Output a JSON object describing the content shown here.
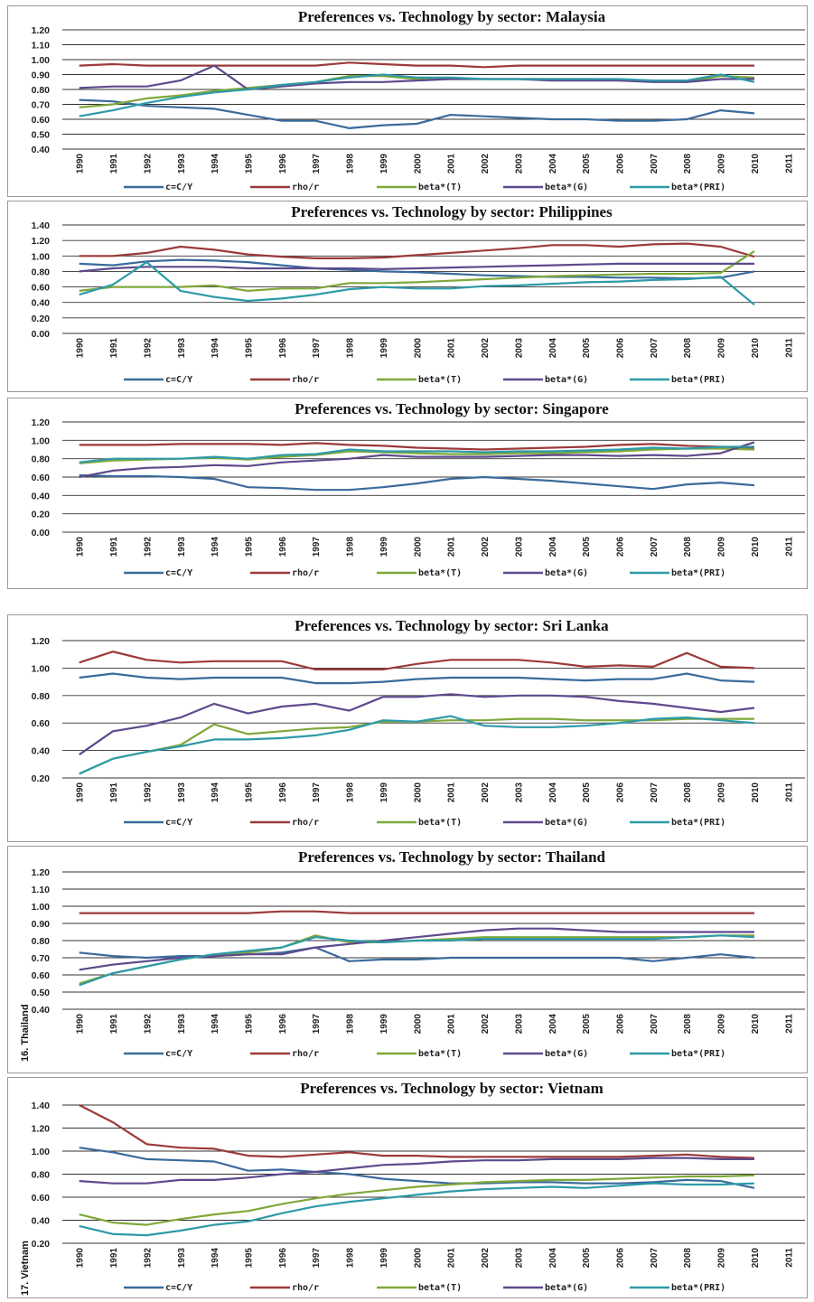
{
  "chart_data": [
    {
      "type": "line",
      "title": "Preferences vs. Technology by sector: Malaysia",
      "side_label": "",
      "x": [
        "1990",
        "1991",
        "1992",
        "1993",
        "1994",
        "1995",
        "1996",
        "1997",
        "1998",
        "1999",
        "2000",
        "2001",
        "2002",
        "2003",
        "2004",
        "2005",
        "2006",
        "2007",
        "2008",
        "2009",
        "2010",
        "2011"
      ],
      "yticks": [
        "1.20",
        "1.10",
        "1.00",
        "0.90",
        "0.80",
        "0.70",
        "0.60",
        "0.50",
        "0.40"
      ],
      "ylim": [
        0.4,
        1.2
      ],
      "legend_position": "bottom",
      "series": [
        {
          "name": "c=C/Y",
          "color": "#3a6b9c",
          "values": [
            0.73,
            0.72,
            0.69,
            0.68,
            0.67,
            0.63,
            0.59,
            0.59,
            0.54,
            0.56,
            0.57,
            0.63,
            0.62,
            0.61,
            0.6,
            0.6,
            0.59,
            0.59,
            0.6,
            0.66,
            0.64,
            null
          ]
        },
        {
          "name": "rho/r",
          "color": "#9c3a3a",
          "values": [
            0.96,
            0.97,
            0.96,
            0.96,
            0.96,
            0.96,
            0.96,
            0.96,
            0.98,
            0.97,
            0.96,
            0.96,
            0.95,
            0.96,
            0.96,
            0.96,
            0.96,
            0.96,
            0.96,
            0.96,
            0.96,
            null
          ]
        },
        {
          "name": "beta*(T)",
          "color": "#7fa83a",
          "values": [
            0.68,
            0.7,
            0.74,
            0.76,
            0.79,
            0.81,
            0.83,
            0.85,
            0.89,
            0.89,
            0.87,
            0.87,
            0.87,
            0.87,
            0.87,
            0.87,
            0.86,
            0.86,
            0.85,
            0.89,
            0.88,
            null
          ]
        },
        {
          "name": "beta*(G)",
          "color": "#5e4a8c",
          "values": [
            0.81,
            0.82,
            0.82,
            0.86,
            0.96,
            0.8,
            0.82,
            0.84,
            0.85,
            0.85,
            0.86,
            0.87,
            0.87,
            0.87,
            0.86,
            0.86,
            0.86,
            0.85,
            0.85,
            0.87,
            0.87,
            null
          ]
        },
        {
          "name": "beta*(PRI)",
          "color": "#2e9aa8",
          "values": [
            0.62,
            0.66,
            0.71,
            0.75,
            0.78,
            0.8,
            0.83,
            0.85,
            0.88,
            0.9,
            0.88,
            0.88,
            0.87,
            0.87,
            0.87,
            0.87,
            0.87,
            0.86,
            0.86,
            0.9,
            0.85,
            null
          ]
        }
      ]
    },
    {
      "type": "line",
      "title": "Preferences vs. Technology by sector: Philippines",
      "side_label": "",
      "x": [
        "1990",
        "1991",
        "1992",
        "1993",
        "1994",
        "1995",
        "1996",
        "1997",
        "1998",
        "1999",
        "2000",
        "2001",
        "2002",
        "2003",
        "2004",
        "2005",
        "2006",
        "2007",
        "2008",
        "2009",
        "2010",
        "2011"
      ],
      "yticks": [
        "1.40",
        "1.20",
        "1.00",
        "0.80",
        "0.60",
        "0.40",
        "0.20",
        "0.00"
      ],
      "ylim": [
        0.0,
        1.4
      ],
      "legend_position": "bottom",
      "series": [
        {
          "name": "c=C/Y",
          "color": "#3a6b9c",
          "values": [
            0.9,
            0.88,
            0.93,
            0.95,
            0.94,
            0.92,
            0.88,
            0.84,
            0.82,
            0.8,
            0.79,
            0.77,
            0.75,
            0.74,
            0.73,
            0.73,
            0.72,
            0.72,
            0.71,
            0.72,
            0.8,
            null
          ]
        },
        {
          "name": "rho/r",
          "color": "#9c3a3a",
          "values": [
            1.0,
            1.0,
            1.04,
            1.12,
            1.08,
            1.02,
            0.99,
            0.97,
            0.97,
            0.98,
            1.01,
            1.04,
            1.07,
            1.1,
            1.14,
            1.14,
            1.12,
            1.15,
            1.16,
            1.12,
            0.99,
            null
          ]
        },
        {
          "name": "beta*(T)",
          "color": "#7fa83a",
          "values": [
            0.55,
            0.6,
            0.6,
            0.6,
            0.62,
            0.55,
            0.58,
            0.58,
            0.65,
            0.65,
            0.66,
            0.68,
            0.7,
            0.72,
            0.74,
            0.75,
            0.76,
            0.77,
            0.77,
            0.78,
            1.06,
            null
          ]
        },
        {
          "name": "beta*(G)",
          "color": "#5e4a8c",
          "values": [
            0.8,
            0.84,
            0.86,
            0.86,
            0.86,
            0.84,
            0.84,
            0.84,
            0.84,
            0.83,
            0.84,
            0.85,
            0.86,
            0.87,
            0.88,
            0.89,
            0.9,
            0.9,
            0.9,
            0.9,
            0.9,
            null
          ]
        },
        {
          "name": "beta*(PRI)",
          "color": "#2e9aa8",
          "values": [
            0.5,
            0.63,
            0.92,
            0.55,
            0.47,
            0.42,
            0.45,
            0.5,
            0.57,
            0.6,
            0.58,
            0.58,
            0.61,
            0.62,
            0.64,
            0.66,
            0.67,
            0.69,
            0.7,
            0.73,
            0.37,
            null
          ]
        }
      ]
    },
    {
      "type": "line",
      "title": "Preferences vs. Technology by sector: Singapore",
      "side_label": "",
      "x": [
        "1990",
        "1991",
        "1992",
        "1993",
        "1994",
        "1995",
        "1996",
        "1997",
        "1998",
        "1999",
        "2000",
        "2001",
        "2002",
        "2003",
        "2004",
        "2005",
        "2006",
        "2007",
        "2008",
        "2009",
        "2010",
        "2011"
      ],
      "yticks": [
        "1.20",
        "1.00",
        "0.80",
        "0.60",
        "0.40",
        "0.20",
        "0.00"
      ],
      "ylim": [
        0.0,
        1.2
      ],
      "legend_position": "bottom",
      "series": [
        {
          "name": "c=C/Y",
          "color": "#3a6b9c",
          "values": [
            0.62,
            0.61,
            0.61,
            0.6,
            0.58,
            0.49,
            0.48,
            0.46,
            0.46,
            0.49,
            0.53,
            0.58,
            0.6,
            0.58,
            0.56,
            0.53,
            0.5,
            0.47,
            0.52,
            0.54,
            0.51,
            null
          ]
        },
        {
          "name": "rho/r",
          "color": "#9c3a3a",
          "values": [
            0.95,
            0.95,
            0.95,
            0.96,
            0.96,
            0.96,
            0.95,
            0.97,
            0.95,
            0.94,
            0.92,
            0.91,
            0.9,
            0.91,
            0.92,
            0.93,
            0.95,
            0.96,
            0.94,
            0.93,
            0.92,
            null
          ]
        },
        {
          "name": "beta*(T)",
          "color": "#7fa83a",
          "values": [
            0.75,
            0.78,
            0.79,
            0.8,
            0.81,
            0.79,
            0.82,
            0.84,
            0.88,
            0.87,
            0.86,
            0.85,
            0.85,
            0.86,
            0.86,
            0.87,
            0.88,
            0.9,
            0.91,
            0.91,
            0.9,
            null
          ]
        },
        {
          "name": "beta*(G)",
          "color": "#5e4a8c",
          "values": [
            0.6,
            0.67,
            0.7,
            0.71,
            0.73,
            0.72,
            0.76,
            0.78,
            0.8,
            0.84,
            0.82,
            0.82,
            0.82,
            0.83,
            0.84,
            0.84,
            0.83,
            0.84,
            0.83,
            0.86,
            0.98,
            null
          ]
        },
        {
          "name": "beta*(PRI)",
          "color": "#2e9aa8",
          "values": [
            0.76,
            0.8,
            0.8,
            0.8,
            0.82,
            0.8,
            0.84,
            0.85,
            0.9,
            0.88,
            0.88,
            0.88,
            0.87,
            0.88,
            0.88,
            0.89,
            0.9,
            0.92,
            0.91,
            0.93,
            0.93,
            null
          ]
        }
      ]
    },
    {
      "type": "line",
      "title": "Preferences vs. Technology by sector: Sri Lanka",
      "side_label": "",
      "x": [
        "1990",
        "1991",
        "1992",
        "1993",
        "1994",
        "1995",
        "1996",
        "1997",
        "1998",
        "1999",
        "2000",
        "2001",
        "2002",
        "2003",
        "2004",
        "2005",
        "2006",
        "2007",
        "2008",
        "2009",
        "2010",
        "2011"
      ],
      "yticks": [
        "1.20",
        "1.00",
        "0.80",
        "0.60",
        "0.40",
        "0.20"
      ],
      "ylim": [
        0.2,
        1.2
      ],
      "legend_position": "bottom",
      "series": [
        {
          "name": "c=C/Y",
          "color": "#3a6b9c",
          "values": [
            0.93,
            0.96,
            0.93,
            0.92,
            0.93,
            0.93,
            0.93,
            0.89,
            0.89,
            0.9,
            0.92,
            0.93,
            0.93,
            0.93,
            0.92,
            0.91,
            0.92,
            0.92,
            0.96,
            0.91,
            0.9,
            null
          ]
        },
        {
          "name": "rho/r",
          "color": "#9c3a3a",
          "values": [
            1.04,
            1.12,
            1.06,
            1.04,
            1.05,
            1.05,
            1.05,
            0.99,
            0.99,
            0.99,
            1.03,
            1.06,
            1.06,
            1.06,
            1.04,
            1.01,
            1.02,
            1.01,
            1.11,
            1.01,
            1.0,
            null
          ]
        },
        {
          "name": "beta*(T)",
          "color": "#7fa83a",
          "values": [
            0.23,
            0.34,
            0.39,
            0.44,
            0.59,
            0.52,
            0.54,
            0.56,
            0.57,
            0.61,
            0.61,
            0.62,
            0.62,
            0.63,
            0.63,
            0.62,
            0.62,
            0.62,
            0.63,
            0.63,
            0.63,
            null
          ]
        },
        {
          "name": "beta*(G)",
          "color": "#5e4a8c",
          "values": [
            0.37,
            0.54,
            0.58,
            0.64,
            0.74,
            0.67,
            0.72,
            0.74,
            0.69,
            0.79,
            0.79,
            0.81,
            0.79,
            0.8,
            0.8,
            0.79,
            0.76,
            0.74,
            0.71,
            0.68,
            0.71,
            null
          ]
        },
        {
          "name": "beta*(PRI)",
          "color": "#2e9aa8",
          "values": [
            0.23,
            0.34,
            0.39,
            0.43,
            0.48,
            0.48,
            0.49,
            0.51,
            0.55,
            0.62,
            0.61,
            0.65,
            0.58,
            0.57,
            0.57,
            0.58,
            0.6,
            0.63,
            0.64,
            0.62,
            0.6,
            null
          ]
        }
      ]
    },
    {
      "type": "line",
      "title": "Preferences vs. Technology by sector: Thailand",
      "side_label": "16. Thailand",
      "x": [
        "1990",
        "1991",
        "1992",
        "1993",
        "1994",
        "1995",
        "1996",
        "1997",
        "1998",
        "1999",
        "2000",
        "2001",
        "2002",
        "2003",
        "2004",
        "2005",
        "2006",
        "2007",
        "2008",
        "2009",
        "2010",
        "2011"
      ],
      "yticks": [
        "1.20",
        "1.10",
        "1.00",
        "0.90",
        "0.80",
        "0.70",
        "0.60",
        "0.50",
        "0.40"
      ],
      "ylim": [
        0.4,
        1.2
      ],
      "legend_position": "bottom",
      "series": [
        {
          "name": "c=C/Y",
          "color": "#3a6b9c",
          "values": [
            0.73,
            0.71,
            0.7,
            0.71,
            0.71,
            0.72,
            0.73,
            0.76,
            0.68,
            0.69,
            0.69,
            0.7,
            0.7,
            0.7,
            0.7,
            0.7,
            0.7,
            0.68,
            0.7,
            0.72,
            0.7,
            null
          ]
        },
        {
          "name": "rho/r",
          "color": "#9c3a3a",
          "values": [
            0.96,
            0.96,
            0.96,
            0.96,
            0.96,
            0.96,
            0.97,
            0.97,
            0.96,
            0.96,
            0.96,
            0.96,
            0.96,
            0.96,
            0.96,
            0.96,
            0.96,
            0.96,
            0.96,
            0.96,
            0.96,
            null
          ]
        },
        {
          "name": "beta*(T)",
          "color": "#7fa83a",
          "values": [
            0.55,
            0.61,
            0.65,
            0.69,
            0.72,
            0.73,
            0.76,
            0.83,
            0.79,
            0.79,
            0.8,
            0.81,
            0.82,
            0.82,
            0.82,
            0.82,
            0.82,
            0.82,
            0.82,
            0.83,
            0.83,
            null
          ]
        },
        {
          "name": "beta*(G)",
          "color": "#5e4a8c",
          "values": [
            0.63,
            0.66,
            0.68,
            0.7,
            0.71,
            0.72,
            0.72,
            0.76,
            0.78,
            0.8,
            0.82,
            0.84,
            0.86,
            0.87,
            0.87,
            0.86,
            0.85,
            0.85,
            0.85,
            0.85,
            0.85,
            null
          ]
        },
        {
          "name": "beta*(PRI)",
          "color": "#2e9aa8",
          "values": [
            0.54,
            0.61,
            0.65,
            0.69,
            0.72,
            0.74,
            0.76,
            0.82,
            0.8,
            0.79,
            0.8,
            0.8,
            0.81,
            0.81,
            0.81,
            0.81,
            0.81,
            0.81,
            0.82,
            0.83,
            0.82,
            null
          ]
        }
      ]
    },
    {
      "type": "line",
      "title": "Preferences vs. Technology by sector: Vietnam",
      "side_label": "17. Vietnam",
      "x": [
        "1990",
        "1991",
        "1992",
        "1993",
        "1994",
        "1995",
        "1996",
        "1997",
        "1998",
        "1999",
        "2000",
        "2001",
        "2002",
        "2003",
        "2004",
        "2005",
        "2006",
        "2007",
        "2008",
        "2009",
        "2010",
        "2011"
      ],
      "yticks": [
        "1.40",
        "1.20",
        "1.00",
        "0.80",
        "0.60",
        "0.40",
        "0.20"
      ],
      "ylim": [
        0.2,
        1.4
      ],
      "legend_position": "bottom",
      "series": [
        {
          "name": "c=C/Y",
          "color": "#3a6b9c",
          "values": [
            1.03,
            0.99,
            0.93,
            0.92,
            0.91,
            0.83,
            0.84,
            0.82,
            0.8,
            0.76,
            0.74,
            0.72,
            0.72,
            0.73,
            0.73,
            0.72,
            0.72,
            0.73,
            0.75,
            0.74,
            0.68,
            null
          ]
        },
        {
          "name": "rho/r",
          "color": "#9c3a3a",
          "values": [
            1.4,
            1.25,
            1.06,
            1.03,
            1.02,
            0.96,
            0.95,
            0.97,
            0.99,
            0.96,
            0.96,
            0.95,
            0.95,
            0.95,
            0.95,
            0.95,
            0.95,
            0.96,
            0.97,
            0.95,
            0.94,
            null
          ]
        },
        {
          "name": "beta*(T)",
          "color": "#7fa83a",
          "values": [
            0.45,
            0.38,
            0.36,
            0.41,
            0.45,
            0.48,
            0.54,
            0.59,
            0.63,
            0.66,
            0.69,
            0.71,
            0.73,
            0.74,
            0.75,
            0.75,
            0.76,
            0.77,
            0.78,
            0.78,
            0.79,
            null
          ]
        },
        {
          "name": "beta*(G)",
          "color": "#5e4a8c",
          "values": [
            0.74,
            0.72,
            0.72,
            0.75,
            0.75,
            0.77,
            0.8,
            0.82,
            0.85,
            0.88,
            0.89,
            0.91,
            0.92,
            0.92,
            0.93,
            0.93,
            0.93,
            0.94,
            0.94,
            0.93,
            0.93,
            null
          ]
        },
        {
          "name": "beta*(PRI)",
          "color": "#2e9aa8",
          "values": [
            0.35,
            0.28,
            0.27,
            0.31,
            0.36,
            0.39,
            0.46,
            0.52,
            0.56,
            0.59,
            0.62,
            0.65,
            0.67,
            0.68,
            0.69,
            0.68,
            0.7,
            0.72,
            0.71,
            0.71,
            0.72,
            null
          ]
        }
      ]
    }
  ]
}
